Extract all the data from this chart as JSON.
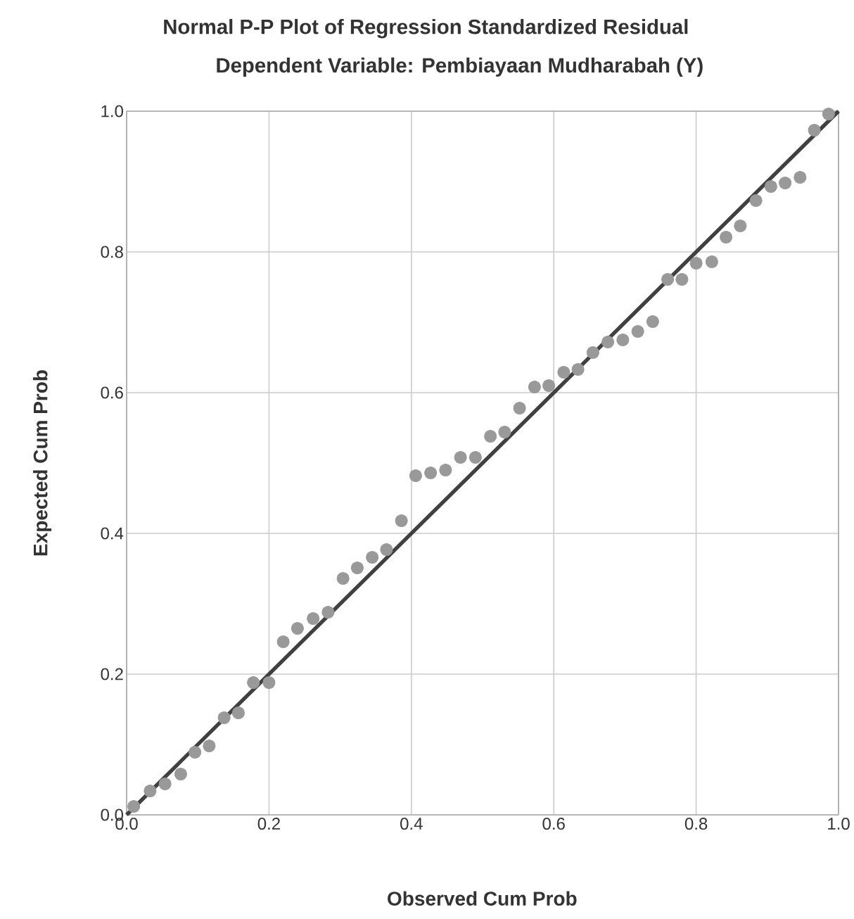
{
  "chart_data": {
    "type": "scatter",
    "title": "Normal P-P Plot of Regression Standardized Residual",
    "subtitle": "Dependent Variable: Pembiayaan Mudharabah (Y)",
    "xlabel": "Observed Cum Prob",
    "ylabel": "Expected Cum Prob",
    "xlim": [
      0,
      1
    ],
    "ylim": [
      0,
      1
    ],
    "xticks": [
      {
        "value": 0,
        "label": "0.0"
      },
      0.2,
      0.4,
      0.6,
      0.8,
      {
        "value": 1,
        "label": "1.0"
      }
    ],
    "yticks": [
      {
        "value": 0,
        "label": "0.0"
      },
      0.2,
      0.4,
      0.6,
      0.8,
      {
        "value": 1,
        "label": "1.0"
      }
    ],
    "grid": true,
    "series": [
      {
        "color": "#999999",
        "marker": "circle",
        "x": [
          0.01,
          0.033,
          0.054,
          0.076,
          0.096,
          0.116,
          0.137,
          0.157,
          0.178,
          0.2,
          0.22,
          0.24,
          0.262,
          0.283,
          0.304,
          0.324,
          0.345,
          0.365,
          0.386,
          0.406,
          0.427,
          0.448,
          0.469,
          0.49,
          0.511,
          0.531,
          0.552,
          0.573,
          0.593,
          0.614,
          0.634,
          0.655,
          0.676,
          0.697,
          0.718,
          0.739,
          0.76,
          0.78,
          0.8,
          0.822,
          0.842,
          0.862,
          0.884,
          0.905,
          0.925,
          0.946,
          0.966,
          0.986
        ],
        "values": [
          0.012,
          0.034,
          0.044,
          0.058,
          0.089,
          0.098,
          0.138,
          0.145,
          0.188,
          0.188,
          0.246,
          0.265,
          0.279,
          0.288,
          0.336,
          0.351,
          0.366,
          0.377,
          0.418,
          0.482,
          0.486,
          0.49,
          0.508,
          0.508,
          0.538,
          0.544,
          0.578,
          0.608,
          0.61,
          0.629,
          0.633,
          0.657,
          0.672,
          0.675,
          0.687,
          0.701,
          0.761,
          0.761,
          0.784,
          0.786,
          0.821,
          0.837,
          0.873,
          0.893,
          0.898,
          0.906,
          0.973,
          0.996
        ]
      },
      {
        "type": "line",
        "color": "#404040",
        "line_style": "solid",
        "marker": "none",
        "x": [
          0,
          1
        ],
        "values": [
          0,
          1
        ]
      }
    ]
  }
}
